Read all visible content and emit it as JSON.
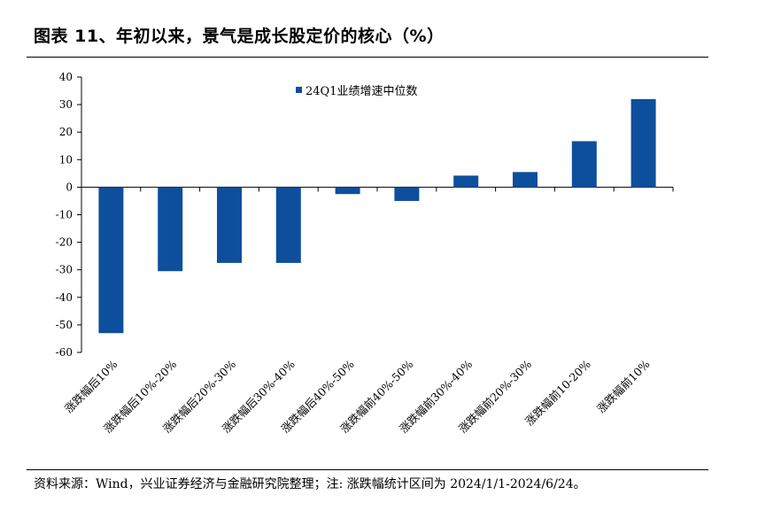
{
  "title": "图表 11、年初以来，景气是成长股定价的核心（%）",
  "source": "资料来源：Wind，兴业证券经济与金融研究院整理；注: 涨跌幅统计区间为 2024/1/1-2024/6/24。",
  "chart_data": {
    "type": "bar",
    "categories": [
      "涨跌幅后10%",
      "涨跌幅后10%-20%",
      "涨跌幅后20%-30%",
      "涨跌幅后30%-40%",
      "涨跌幅后40%-50%",
      "涨跌幅前40%-50%",
      "涨跌幅前30%-40%",
      "涨跌幅前20%-30%",
      "涨跌幅前10-20%",
      "涨跌幅前10%"
    ],
    "series": [
      {
        "name": "24Q1业绩增速中位数",
        "values": [
          -53,
          -30.5,
          -27.5,
          -27.5,
          -2.5,
          -5,
          4.2,
          5.5,
          16.7,
          32
        ]
      }
    ],
    "ylim": [
      -60,
      40
    ],
    "yticks": [
      "40",
      "30",
      "20",
      "10",
      "0",
      "-10",
      "-20",
      "-30",
      "-40",
      "-50",
      "-60"
    ],
    "color": "#0d4f9c",
    "legend_position": "top-center",
    "grid": false
  }
}
